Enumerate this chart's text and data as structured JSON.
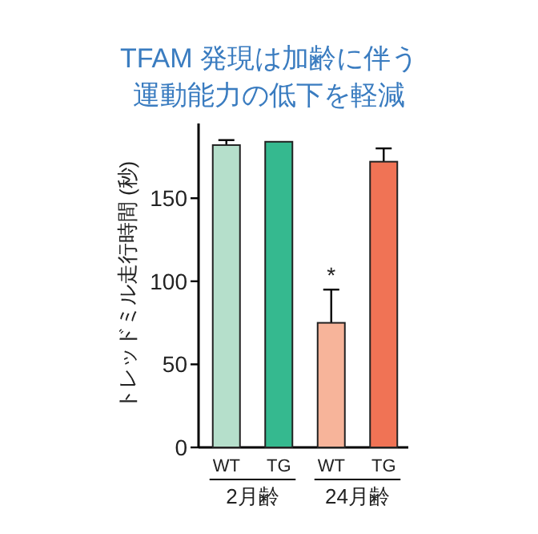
{
  "chart_data": {
    "type": "bar",
    "title": "TFAM 発現は加齢に伴う",
    "subtitle": "運動能力の低下を軽減",
    "ylabel": "トレッドミル走行時間 (秒)",
    "categories": [
      "WT",
      "TG",
      "WT",
      "TG"
    ],
    "values": [
      182,
      184,
      75,
      172
    ],
    "errors": [
      3,
      null,
      20,
      8
    ],
    "colors": [
      "#b5dfcb",
      "#35b98f",
      "#f7b49a",
      "#f07355"
    ],
    "ylim": [
      0,
      195
    ],
    "yticks": [
      0,
      50,
      100,
      150
    ],
    "annotations": [
      "*",
      "2月齢",
      "24月齢"
    ]
  }
}
